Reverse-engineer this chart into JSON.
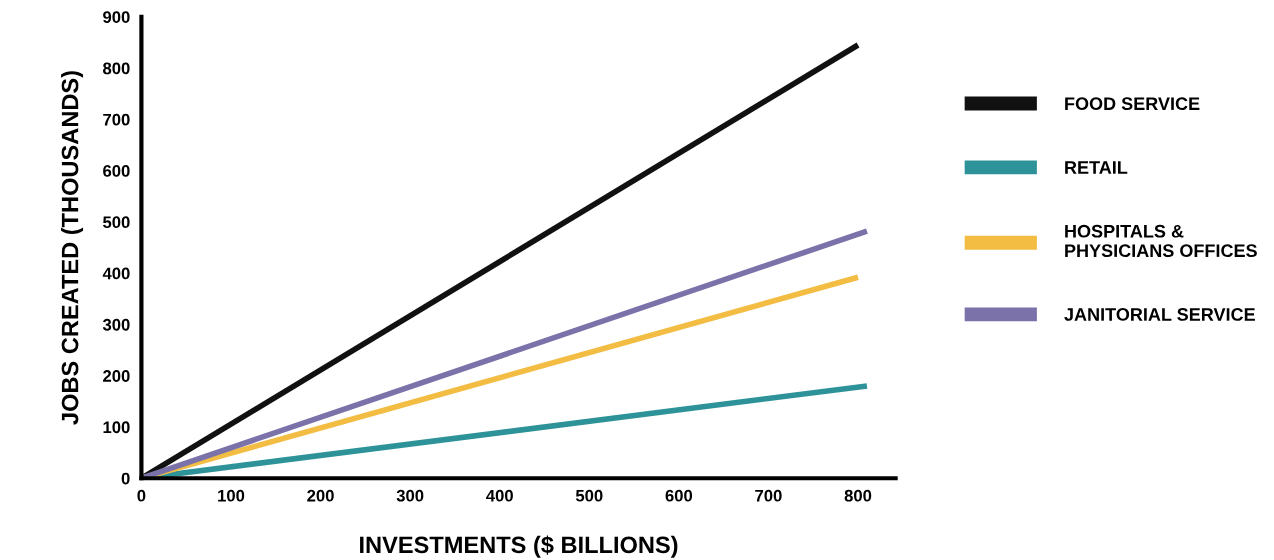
{
  "chart_data": {
    "type": "line",
    "xlabel": "INVESTMENTS ($ BILLIONS)",
    "ylabel": "JOBS CREATED (THOUSANDS)",
    "xlim": [
      0,
      842
    ],
    "ylim": [
      0,
      900
    ],
    "xticks": [
      0,
      100,
      200,
      300,
      400,
      500,
      600,
      700,
      800
    ],
    "yticks": [
      0,
      100,
      200,
      300,
      400,
      500,
      600,
      700,
      800,
      900
    ],
    "grid": false,
    "legend": "right",
    "marker": "none",
    "line_style": "solid",
    "series": [
      {
        "name": "FOOD SERVICE",
        "color": "#111111",
        "x": [
          0,
          800
        ],
        "values": [
          0,
          845
        ]
      },
      {
        "name": "RETAIL",
        "color": "#2e9399",
        "x": [
          0,
          810
        ],
        "values": [
          0,
          180
        ]
      },
      {
        "name": "HOSPITALS &\nPHYSICIANS OFFICES",
        "color": "#f2bd42",
        "x": [
          0,
          800
        ],
        "values": [
          0,
          392
        ]
      },
      {
        "name": "JANITORIAL SERVICE",
        "color": "#7b72aa",
        "x": [
          0,
          810
        ],
        "values": [
          0,
          482
        ]
      }
    ]
  }
}
